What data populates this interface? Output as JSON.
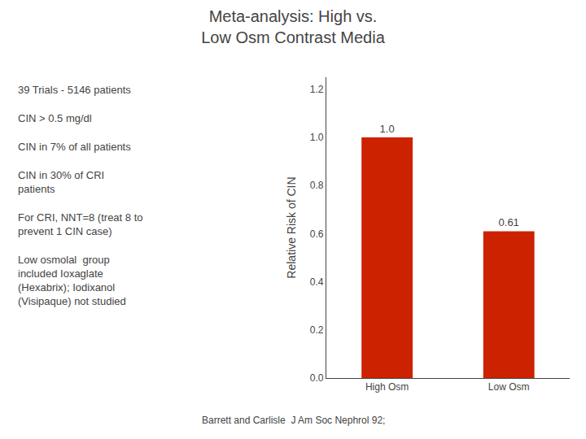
{
  "chart_data": {
    "type": "bar",
    "title": "Meta-analysis: High vs.\nLow Osm Contrast Media",
    "categories": [
      "High Osm",
      "Low Osm"
    ],
    "values": [
      1.0,
      0.61
    ],
    "value_labels": [
      "1.0",
      "0.61"
    ],
    "data_labels": true,
    "color": "#cc2200",
    "ylabel": "Relative Risk of CIN",
    "ylim": [
      0.0,
      1.25
    ],
    "yticks": [
      {
        "value": 0.0,
        "label": "0.0"
      },
      0.2,
      0.4,
      0.6,
      0.8,
      {
        "value": 1.0,
        "label": "1.0"
      },
      1.2
    ],
    "grid": false,
    "annotations": [
      "39 Trials - 5146 patients",
      "CIN > 0.5 mg/dl",
      "CIN in 7% of all patients",
      "CIN in 30% of CRI\npatients",
      "For CRI, NNT=8 (treat 8 to\nprevent 1 CIN case)",
      "Low osmolal  group\nincluded Ioxaglate\n(Hexabrix); Iodixanol\n(Visipaque) not studied",
      "Barrett and Carlisle  J Am Soc Nephrol 92;"
    ]
  }
}
